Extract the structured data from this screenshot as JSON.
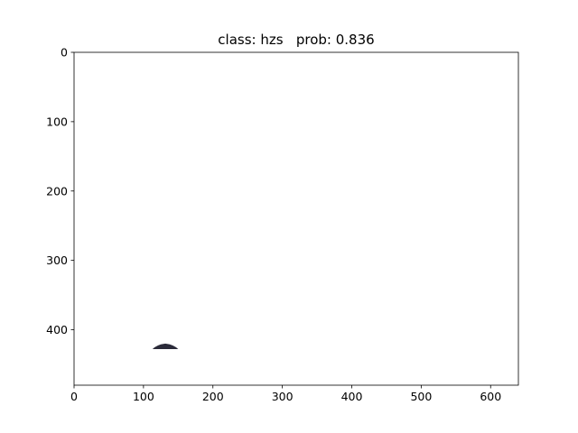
{
  "chart_data": {
    "type": "image",
    "title": "class: hzs   prob: 0.836",
    "xlabel": "",
    "ylabel": "",
    "xlim": [
      0,
      640
    ],
    "ylim": [
      480,
      0
    ],
    "x_ticks": [
      0,
      100,
      200,
      300,
      400,
      500,
      600
    ],
    "y_ticks": [
      0,
      100,
      200,
      300,
      400
    ],
    "y_inverted": true,
    "grid": false,
    "legend": "none",
    "detected_object": {
      "x_range": [
        113,
        150
      ],
      "y_range": [
        420,
        428
      ],
      "color": "#2b2b3a"
    },
    "colors": {
      "background": "#ffffff",
      "axes": "#000000",
      "object": "#2b2b3a"
    }
  }
}
